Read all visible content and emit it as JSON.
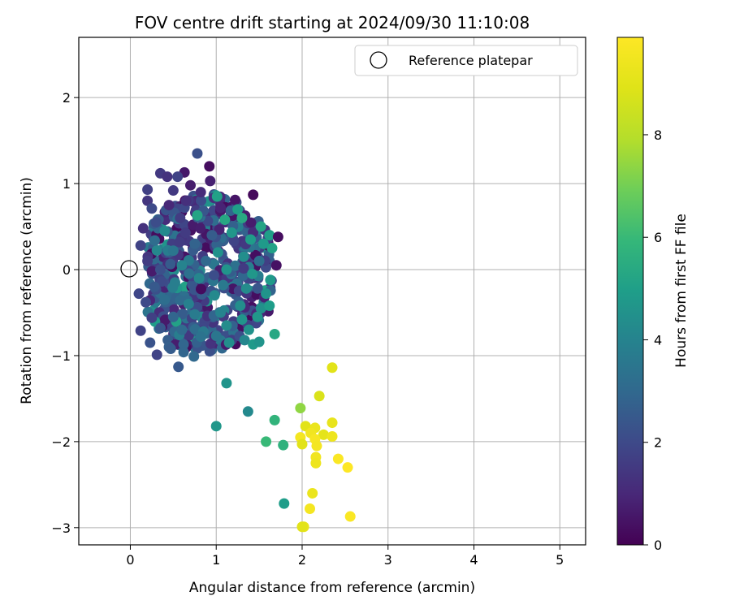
{
  "chart_data": {
    "type": "scatter",
    "title": "FOV centre drift starting at 2024/09/30 11:10:08",
    "xlabel": "Angular distance from reference (arcmin)",
    "ylabel": "Rotation from reference (arcmin)",
    "xlim": [
      -0.6,
      5.3
    ],
    "ylim": [
      -3.2,
      2.7
    ],
    "xticks": [
      "0",
      "1",
      "2",
      "3",
      "4",
      "5"
    ],
    "xtick_values": [
      0,
      1,
      2,
      3,
      4,
      5
    ],
    "yticks": [
      "−3",
      "−2",
      "−1",
      "0",
      "1",
      "2"
    ],
    "ytick_values": [
      -3,
      -2,
      -1,
      0,
      1,
      2
    ],
    "grid": true,
    "legend": {
      "placement": "top-right",
      "entries": [
        "Reference platepar"
      ]
    },
    "reference_point": {
      "x": 0,
      "y": 0
    },
    "colorbar": {
      "label": "Hours from first FF file",
      "range": [
        0,
        9.9
      ],
      "ticks": [
        "0",
        "2",
        "4",
        "6",
        "8"
      ],
      "tick_values": [
        0,
        2,
        4,
        6,
        8
      ],
      "colormap": "viridis"
    },
    "cluster": {
      "description": "dense main cluster",
      "x_range": [
        0.1,
        1.8
      ],
      "y_range": [
        -1.1,
        1.35
      ]
    },
    "points": [
      {
        "x": 0.78,
        "y": 1.35,
        "hours": 2.2
      },
      {
        "x": 0.92,
        "y": 1.2,
        "hours": 0.3
      },
      {
        "x": 0.35,
        "y": 1.12,
        "hours": 1.5
      },
      {
        "x": 0.63,
        "y": 1.13,
        "hours": 0.6
      },
      {
        "x": 0.43,
        "y": 1.08,
        "hours": 1.3
      },
      {
        "x": 0.55,
        "y": 1.08,
        "hours": 1.8
      },
      {
        "x": 0.93,
        "y": 1.03,
        "hours": 0.8
      },
      {
        "x": 0.2,
        "y": 0.93,
        "hours": 1.7
      },
      {
        "x": 0.7,
        "y": 0.98,
        "hours": 0.7
      },
      {
        "x": 1.43,
        "y": 0.87,
        "hours": 0.2
      },
      {
        "x": 1.01,
        "y": 0.85,
        "hours": 5.1
      },
      {
        "x": 1.22,
        "y": 0.81,
        "hours": 0.5
      },
      {
        "x": 0.2,
        "y": 0.8,
        "hours": 1.4
      },
      {
        "x": 0.5,
        "y": 0.92,
        "hours": 1.5
      },
      {
        "x": 0.82,
        "y": 0.9,
        "hours": 1.1
      },
      {
        "x": 0.25,
        "y": 0.71,
        "hours": 2.0
      },
      {
        "x": 0.45,
        "y": 0.75,
        "hours": 1.0
      },
      {
        "x": 0.65,
        "y": 0.8,
        "hours": 1.2
      },
      {
        "x": 0.85,
        "y": 0.68,
        "hours": 2.4
      },
      {
        "x": 1.05,
        "y": 0.72,
        "hours": 0.9
      },
      {
        "x": 1.25,
        "y": 0.7,
        "hours": 5.0
      },
      {
        "x": 0.15,
        "y": 0.48,
        "hours": 1.3
      },
      {
        "x": 0.3,
        "y": 0.55,
        "hours": 2.1
      },
      {
        "x": 0.58,
        "y": 0.6,
        "hours": 1.6
      },
      {
        "x": 0.78,
        "y": 0.63,
        "hours": 5.2
      },
      {
        "x": 1.1,
        "y": 0.58,
        "hours": 5.3
      },
      {
        "x": 1.3,
        "y": 0.6,
        "hours": 5.4
      },
      {
        "x": 1.52,
        "y": 0.5,
        "hours": 5.2
      },
      {
        "x": 1.62,
        "y": 0.4,
        "hours": 5.0
      },
      {
        "x": 1.72,
        "y": 0.38,
        "hours": 0.3
      },
      {
        "x": 0.12,
        "y": 0.28,
        "hours": 1.8
      },
      {
        "x": 0.4,
        "y": 0.45,
        "hours": 4.2
      },
      {
        "x": 0.95,
        "y": 0.4,
        "hours": 2.6
      },
      {
        "x": 1.18,
        "y": 0.43,
        "hours": 4.7
      },
      {
        "x": 1.4,
        "y": 0.35,
        "hours": 4.9
      },
      {
        "x": 1.65,
        "y": 0.25,
        "hours": 5.1
      },
      {
        "x": 1.55,
        "y": 0.3,
        "hours": 4.8
      },
      {
        "x": 0.2,
        "y": 0.1,
        "hours": 1.6
      },
      {
        "x": 0.5,
        "y": 0.22,
        "hours": 3.5
      },
      {
        "x": 0.75,
        "y": 0.3,
        "hours": 2.8
      },
      {
        "x": 1.02,
        "y": 0.2,
        "hours": 4.5
      },
      {
        "x": 1.32,
        "y": 0.15,
        "hours": 4.4
      },
      {
        "x": 1.7,
        "y": 0.05,
        "hours": 0.4
      },
      {
        "x": 1.5,
        "y": 0.1,
        "hours": 3.2
      },
      {
        "x": 0.35,
        "y": 0.0,
        "hours": 2.2
      },
      {
        "x": 0.6,
        "y": 0.05,
        "hours": 4.0
      },
      {
        "x": 0.88,
        "y": 0.1,
        "hours": 3.0
      },
      {
        "x": 1.12,
        "y": 0.0,
        "hours": 4.6
      },
      {
        "x": 1.42,
        "y": -0.05,
        "hours": 4.7
      },
      {
        "x": 1.63,
        "y": -0.12,
        "hours": 4.8
      },
      {
        "x": 0.1,
        "y": -0.28,
        "hours": 1.9
      },
      {
        "x": 0.28,
        "y": -0.2,
        "hours": 2.5
      },
      {
        "x": 0.52,
        "y": -0.15,
        "hours": 3.8
      },
      {
        "x": 0.8,
        "y": -0.1,
        "hours": 4.1
      },
      {
        "x": 1.08,
        "y": -0.18,
        "hours": 3.6
      },
      {
        "x": 1.35,
        "y": -0.22,
        "hours": 4.3
      },
      {
        "x": 1.58,
        "y": -0.28,
        "hours": 4.6
      },
      {
        "x": 0.18,
        "y": -0.38,
        "hours": 2.0
      },
      {
        "x": 0.4,
        "y": -0.35,
        "hours": 3.2
      },
      {
        "x": 0.68,
        "y": -0.4,
        "hours": 3.9
      },
      {
        "x": 0.98,
        "y": -0.3,
        "hours": 4.2
      },
      {
        "x": 1.28,
        "y": -0.42,
        "hours": 4.4
      },
      {
        "x": 1.52,
        "y": -0.45,
        "hours": 4.5
      },
      {
        "x": 1.62,
        "y": -0.42,
        "hours": 4.9
      },
      {
        "x": 0.25,
        "y": -0.56,
        "hours": 1.7
      },
      {
        "x": 0.5,
        "y": -0.55,
        "hours": 2.9
      },
      {
        "x": 0.75,
        "y": -0.52,
        "hours": 3.7
      },
      {
        "x": 1.05,
        "y": -0.5,
        "hours": 4.0
      },
      {
        "x": 1.3,
        "y": -0.58,
        "hours": 4.6
      },
      {
        "x": 1.48,
        "y": -0.55,
        "hours": 4.7
      },
      {
        "x": 0.12,
        "y": -0.71,
        "hours": 1.8
      },
      {
        "x": 0.35,
        "y": -0.68,
        "hours": 2.4
      },
      {
        "x": 0.6,
        "y": -0.7,
        "hours": 3.1
      },
      {
        "x": 0.85,
        "y": -0.72,
        "hours": 3.6
      },
      {
        "x": 1.12,
        "y": -0.65,
        "hours": 4.3
      },
      {
        "x": 1.38,
        "y": -0.7,
        "hours": 4.5
      },
      {
        "x": 0.23,
        "y": -0.85,
        "hours": 2.3
      },
      {
        "x": 0.45,
        "y": -0.9,
        "hours": 2.7
      },
      {
        "x": 0.62,
        "y": -0.87,
        "hours": 2.9
      },
      {
        "x": 0.82,
        "y": -0.78,
        "hours": 3.4
      },
      {
        "x": 1.0,
        "y": -0.77,
        "hours": 3.5
      },
      {
        "x": 1.15,
        "y": -0.85,
        "hours": 4.4
      },
      {
        "x": 1.33,
        "y": -0.82,
        "hours": 4.1
      },
      {
        "x": 1.43,
        "y": -0.87,
        "hours": 4.8
      },
      {
        "x": 1.5,
        "y": -0.84,
        "hours": 4.6
      },
      {
        "x": 1.68,
        "y": -0.75,
        "hours": 5.3
      },
      {
        "x": 0.31,
        "y": -0.99,
        "hours": 1.8
      },
      {
        "x": 0.47,
        "y": -0.92,
        "hours": 2.6
      },
      {
        "x": 0.62,
        "y": -0.96,
        "hours": 2.9
      },
      {
        "x": 0.74,
        "y": -1.01,
        "hours": 3.0
      },
      {
        "x": 0.56,
        "y": -1.13,
        "hours": 2.5
      },
      {
        "x": 2.35,
        "y": -1.14,
        "hours": 9.0
      },
      {
        "x": 1.12,
        "y": -1.32,
        "hours": 4.6
      },
      {
        "x": 2.2,
        "y": -1.47,
        "hours": 8.8
      },
      {
        "x": 1.37,
        "y": -1.65,
        "hours": 4.2
      },
      {
        "x": 1.98,
        "y": -1.61,
        "hours": 7.4
      },
      {
        "x": 1.68,
        "y": -1.75,
        "hours": 5.8
      },
      {
        "x": 2.35,
        "y": -1.78,
        "hours": 9.2
      },
      {
        "x": 1.0,
        "y": -1.82,
        "hours": 4.7
      },
      {
        "x": 2.04,
        "y": -1.82,
        "hours": 9.0
      },
      {
        "x": 2.15,
        "y": -1.84,
        "hours": 9.3
      },
      {
        "x": 2.1,
        "y": -1.9,
        "hours": 9.5
      },
      {
        "x": 2.25,
        "y": -1.92,
        "hours": 9.1
      },
      {
        "x": 2.35,
        "y": -1.94,
        "hours": 9.4
      },
      {
        "x": 1.98,
        "y": -1.95,
        "hours": 9.6
      },
      {
        "x": 2.15,
        "y": -1.97,
        "hours": 9.7
      },
      {
        "x": 1.58,
        "y": -2.0,
        "hours": 6.0
      },
      {
        "x": 1.78,
        "y": -2.04,
        "hours": 5.7
      },
      {
        "x": 2.0,
        "y": -2.03,
        "hours": 9.0
      },
      {
        "x": 2.17,
        "y": -2.05,
        "hours": 9.6
      },
      {
        "x": 2.16,
        "y": -2.18,
        "hours": 9.5
      },
      {
        "x": 2.42,
        "y": -2.2,
        "hours": 9.8
      },
      {
        "x": 2.16,
        "y": -2.25,
        "hours": 9.4
      },
      {
        "x": 2.53,
        "y": -2.3,
        "hours": 9.9
      },
      {
        "x": 2.12,
        "y": -2.6,
        "hours": 9.3
      },
      {
        "x": 1.79,
        "y": -2.72,
        "hours": 4.9
      },
      {
        "x": 2.09,
        "y": -2.78,
        "hours": 9.6
      },
      {
        "x": 2.56,
        "y": -2.87,
        "hours": 9.8
      },
      {
        "x": 2.02,
        "y": -2.99,
        "hours": 9.2
      },
      {
        "x": 2.0,
        "y": -2.99,
        "hours": 9.0
      }
    ]
  }
}
